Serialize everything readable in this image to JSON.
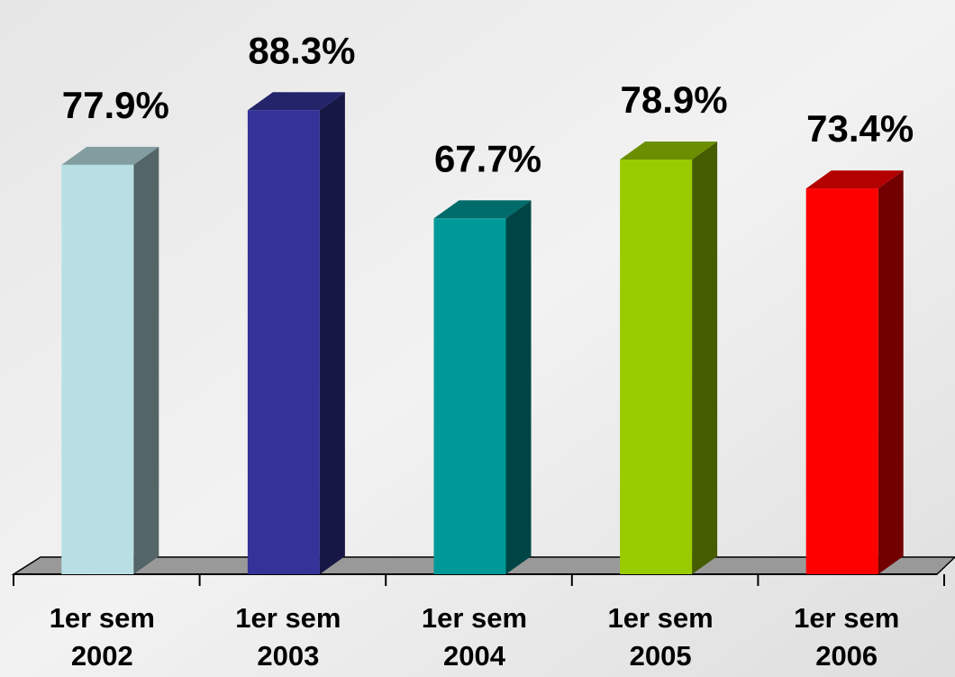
{
  "chart_data": {
    "type": "bar3d",
    "categories": [
      [
        "1er sem",
        "2002"
      ],
      [
        "1er sem",
        "2003"
      ],
      [
        "1er sem",
        "2004"
      ],
      [
        "1er sem",
        "2005"
      ],
      [
        "1er sem",
        "2006"
      ]
    ],
    "values": [
      77.9,
      88.3,
      67.7,
      78.9,
      73.4
    ],
    "value_labels": [
      "77.9%",
      "88.3%",
      "67.7%",
      "78.9%",
      "73.4%"
    ],
    "colors": [
      "#b8e0e4",
      "#333399",
      "#009999",
      "#99cc00",
      "#ff0000"
    ]
  }
}
